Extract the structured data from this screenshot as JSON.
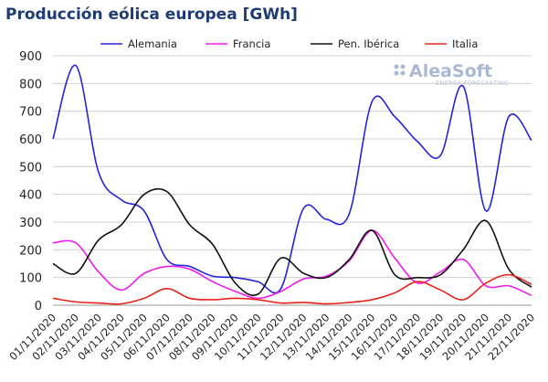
{
  "chart_data": {
    "type": "line",
    "title": "Producción eólica europea [GWh]",
    "logo": {
      "name": "AleaSoft",
      "tagline": "ENERGY FORECASTING"
    },
    "categories": [
      "01/11/2020",
      "02/11/2020",
      "03/11/2020",
      "04/11/2020",
      "05/11/2020",
      "06/11/2020",
      "07/11/2020",
      "08/11/2020",
      "09/11/2020",
      "10/11/2020",
      "11/11/2020",
      "12/11/2020",
      "13/11/2020",
      "14/11/2020",
      "15/11/2020",
      "16/11/2020",
      "17/11/2020",
      "18/11/2020",
      "19/11/2020",
      "20/11/2020",
      "21/11/2020",
      "22/11/2020"
    ],
    "series": [
      {
        "name": "Alemania",
        "color": "#2323d8",
        "values": [
          600,
          865,
          480,
          380,
          340,
          165,
          140,
          105,
          100,
          85,
          60,
          350,
          310,
          330,
          735,
          680,
          590,
          540,
          790,
          340,
          680,
          595
        ]
      },
      {
        "name": "Francia",
        "color": "#ee1cee",
        "values": [
          225,
          225,
          120,
          55,
          115,
          140,
          130,
          85,
          50,
          25,
          50,
          95,
          105,
          160,
          270,
          170,
          80,
          120,
          165,
          70,
          70,
          35
        ]
      },
      {
        "name": "Pen. Ibérica",
        "color": "#111111",
        "values": [
          150,
          115,
          235,
          290,
          400,
          410,
          290,
          220,
          80,
          40,
          170,
          115,
          100,
          165,
          270,
          110,
          100,
          110,
          200,
          305,
          130,
          65
        ]
      },
      {
        "name": "Italia",
        "color": "#e8231b",
        "values": [
          25,
          12,
          8,
          5,
          25,
          60,
          25,
          20,
          25,
          20,
          8,
          10,
          5,
          10,
          20,
          45,
          85,
          55,
          20,
          80,
          110,
          75
        ]
      }
    ],
    "ylim": [
      0,
      900
    ],
    "yticks": [
      0,
      100,
      200,
      300,
      400,
      500,
      600,
      700,
      800,
      900
    ],
    "grid": true
  }
}
